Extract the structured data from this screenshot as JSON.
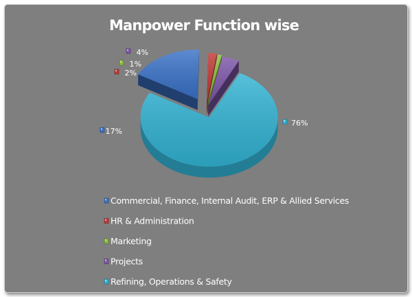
{
  "chart_data": {
    "type": "pie",
    "title": "Manpower Function wise",
    "categories": [
      "Commercial, Finance, Internal Audit, ERP & Allied Services",
      "HR & Administration",
      "Marketing",
      "Projects",
      "Refining, Operations & Safety"
    ],
    "values": [
      17,
      2,
      1,
      4,
      76
    ],
    "data_labels": [
      "17%",
      "2%",
      "1%",
      "4%",
      "76%"
    ],
    "colors": [
      "#3a72c8",
      "#c03834",
      "#8bbb3c",
      "#7d56a9",
      "#32b3d3"
    ],
    "legend_position": "bottom",
    "style": "3d-exploded"
  }
}
